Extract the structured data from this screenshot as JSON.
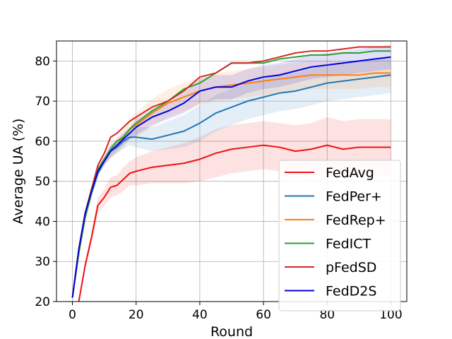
{
  "chart_data": {
    "type": "line",
    "title": "",
    "xlabel": "Round",
    "ylabel": "Average UA (%)",
    "xlim": [
      -5,
      105
    ],
    "ylim": [
      20,
      85
    ],
    "xticks": [
      0,
      20,
      40,
      60,
      80,
      100
    ],
    "yticks": [
      20,
      30,
      40,
      50,
      60,
      70,
      80
    ],
    "grid": true,
    "legend_position": "lower-right",
    "series": [
      {
        "name": "FedAvg",
        "color": "#ee1111",
        "x": [
          0,
          2,
          4,
          6,
          8,
          10,
          12,
          14,
          16,
          18,
          20,
          25,
          30,
          35,
          40,
          45,
          50,
          55,
          60,
          65,
          70,
          75,
          80,
          85,
          90,
          95,
          100
        ],
        "y": [
          19,
          20,
          29,
          36,
          44,
          46,
          48.5,
          49,
          50.5,
          52,
          52.5,
          53.5,
          54,
          54.5,
          55.5,
          57,
          58,
          58.5,
          59,
          58.5,
          57.5,
          58,
          59,
          58,
          58.5,
          58.5,
          58.5
        ],
        "band": [
          0,
          0,
          1,
          1.5,
          2,
          2,
          2.5,
          2.5,
          3,
          3,
          3.5,
          4,
          4.5,
          5,
          5.5,
          6,
          6,
          6,
          6,
          6,
          6.5,
          6.5,
          7,
          7,
          7,
          7,
          7
        ]
      },
      {
        "name": "FedPer+",
        "color": "#1f77b4",
        "x": [
          0,
          2,
          4,
          6,
          8,
          10,
          12,
          14,
          16,
          18,
          20,
          25,
          30,
          35,
          40,
          45,
          50,
          55,
          60,
          65,
          70,
          75,
          80,
          85,
          90,
          95,
          100
        ],
        "y": [
          21,
          33,
          41,
          47,
          52,
          55,
          57.5,
          58.5,
          60,
          61,
          61,
          60.5,
          61.5,
          62.5,
          64.5,
          67,
          68.5,
          70,
          71,
          72,
          72.5,
          73.5,
          74.5,
          75,
          75.5,
          76,
          76.5
        ],
        "band": [
          0.5,
          1,
          1,
          1,
          1,
          1,
          1.5,
          1.5,
          2,
          2,
          2.5,
          3,
          3.5,
          4,
          4.5,
          4.5,
          4.5,
          4.5,
          4.5,
          4.5,
          4.5,
          4.5,
          4.5,
          4.5,
          4.5,
          4.5,
          4.5
        ]
      },
      {
        "name": "FedRep+",
        "color": "#ff7f0e",
        "x": [
          0,
          2,
          4,
          6,
          8,
          10,
          12,
          14,
          16,
          18,
          20,
          25,
          30,
          35,
          40,
          45,
          50,
          55,
          60,
          65,
          70,
          75,
          80,
          85,
          90,
          95,
          100
        ],
        "y": [
          21,
          33,
          42,
          48,
          53,
          55.5,
          57.5,
          59,
          61,
          63,
          64,
          67,
          69.5,
          71,
          72.5,
          73.5,
          74,
          74.5,
          75,
          75.5,
          76,
          76.5,
          76.5,
          76.5,
          76.5,
          77,
          77
        ],
        "band": [
          0.5,
          1,
          1,
          1,
          1.5,
          1.5,
          2,
          2,
          2.5,
          2.5,
          3,
          3.5,
          3.5,
          3.5,
          3.5,
          3.5,
          3.5,
          3.5,
          3.5,
          3.5,
          3.5,
          3.5,
          3.5,
          3.5,
          3.5,
          3.5,
          3.5
        ]
      },
      {
        "name": "FedICT",
        "color": "#2ca02c",
        "x": [
          0,
          2,
          4,
          6,
          8,
          10,
          12,
          14,
          16,
          18,
          20,
          25,
          30,
          35,
          40,
          45,
          50,
          55,
          60,
          65,
          70,
          75,
          80,
          85,
          90,
          95,
          100
        ],
        "y": [
          21,
          32,
          41,
          47,
          53,
          55.5,
          58,
          60,
          61,
          63,
          64.5,
          67.5,
          70,
          73,
          74.5,
          77,
          79.5,
          79.5,
          79.5,
          80.5,
          81,
          81.5,
          81.5,
          82,
          82,
          82.5,
          82.5
        ],
        "band": []
      },
      {
        "name": "pFedSD",
        "color": "#d62728",
        "x": [
          0,
          2,
          4,
          6,
          8,
          10,
          12,
          14,
          16,
          18,
          20,
          25,
          30,
          35,
          40,
          45,
          50,
          55,
          60,
          65,
          70,
          75,
          80,
          85,
          90,
          95,
          100
        ],
        "y": [
          21,
          33,
          42,
          48,
          54,
          57,
          61,
          62,
          63.5,
          65,
          66,
          68.5,
          70,
          72.5,
          76,
          77,
          79.5,
          79.5,
          80,
          81,
          82,
          82.5,
          82.5,
          83,
          83.5,
          83.5,
          83.5
        ],
        "band": []
      },
      {
        "name": "FedD2S",
        "color": "#0000dd",
        "x": [
          0,
          2,
          4,
          6,
          8,
          10,
          12,
          14,
          16,
          18,
          20,
          25,
          30,
          35,
          40,
          45,
          50,
          55,
          60,
          65,
          70,
          75,
          80,
          85,
          90,
          95,
          100
        ],
        "y": [
          21,
          33,
          42,
          47.5,
          52.5,
          55,
          57.5,
          59,
          60.5,
          62,
          63.5,
          66,
          67.5,
          69.5,
          72.5,
          73.5,
          73.5,
          75,
          76,
          76.5,
          77.5,
          78.5,
          79,
          79.5,
          80,
          80.5,
          81
        ],
        "band": [
          0.5,
          1,
          1,
          1,
          1,
          1,
          1.5,
          1.5,
          1.5,
          1.5,
          2,
          2,
          2,
          2.5,
          3,
          3,
          3,
          3,
          3,
          3,
          3,
          3,
          3,
          3,
          3,
          3,
          3
        ]
      }
    ]
  }
}
